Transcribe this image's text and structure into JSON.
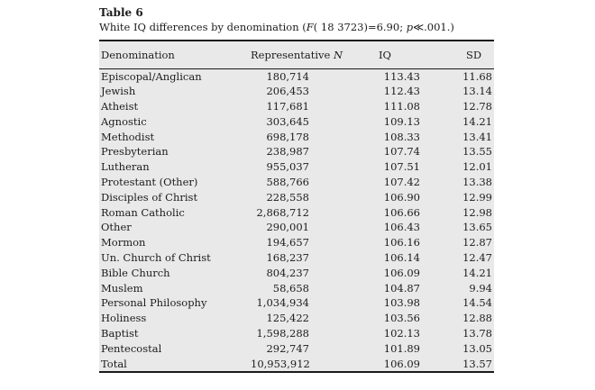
{
  "page": {
    "title": "Table 6",
    "caption": {
      "prefix": "White IQ differences by denomination (",
      "f_symbol": "F",
      "f_args": "( 18 3723)=6.90; ",
      "p_symbol": "p",
      "p_value": "≪.001.)"
    }
  },
  "colors": {
    "page_background": "#ffffff",
    "table_background": "#e9e9e9",
    "rule": "#1a1a1a",
    "text": "#1c1c1c"
  },
  "table": {
    "columns": [
      {
        "label": "Denomination"
      },
      {
        "label": "Representative",
        "label_italic_suffix": "N"
      },
      {
        "label": "IQ"
      },
      {
        "label": "SD"
      }
    ],
    "rows": [
      {
        "denomination": "Episcopal/Anglican",
        "representative_n": "180,714",
        "iq": "113.43",
        "sd": "11.68"
      },
      {
        "denomination": "Jewish",
        "representative_n": "206,453",
        "iq": "112.43",
        "sd": "13.14"
      },
      {
        "denomination": "Atheist",
        "representative_n": "117,681",
        "iq": "111.08",
        "sd": "12.78"
      },
      {
        "denomination": "Agnostic",
        "representative_n": "303,645",
        "iq": "109.13",
        "sd": "14.21"
      },
      {
        "denomination": "Methodist",
        "representative_n": "698,178",
        "iq": "108.33",
        "sd": "13.41"
      },
      {
        "denomination": "Presbyterian",
        "representative_n": "238,987",
        "iq": "107.74",
        "sd": "13.55"
      },
      {
        "denomination": "Lutheran",
        "representative_n": "955,037",
        "iq": "107.51",
        "sd": "12.01"
      },
      {
        "denomination": "Protestant (Other)",
        "representative_n": "588,766",
        "iq": "107.42",
        "sd": "13.38"
      },
      {
        "denomination": "Disciples of Christ",
        "representative_n": "228,558",
        "iq": "106.90",
        "sd": "12.99"
      },
      {
        "denomination": "Roman Catholic",
        "representative_n": "2,868,712",
        "iq": "106.66",
        "sd": "12.98"
      },
      {
        "denomination": "Other",
        "representative_n": "290,001",
        "iq": "106.43",
        "sd": "13.65"
      },
      {
        "denomination": "Mormon",
        "representative_n": "194,657",
        "iq": "106.16",
        "sd": "12.87"
      },
      {
        "denomination": "Un. Church of Christ",
        "representative_n": "168,237",
        "iq": "106.14",
        "sd": "12.47"
      },
      {
        "denomination": "Bible Church",
        "representative_n": "804,237",
        "iq": "106.09",
        "sd": "14.21"
      },
      {
        "denomination": "Muslem",
        "representative_n": "58,658",
        "iq": "104.87",
        "sd": "9.94"
      },
      {
        "denomination": "Personal Philosophy",
        "representative_n": "1,034,934",
        "iq": "103.98",
        "sd": "14.54"
      },
      {
        "denomination": "Holiness",
        "representative_n": "125,422",
        "iq": "103.56",
        "sd": "12.88"
      },
      {
        "denomination": "Baptist",
        "representative_n": "1,598,288",
        "iq": "102.13",
        "sd": "13.78"
      },
      {
        "denomination": "Pentecostal",
        "representative_n": "292,747",
        "iq": "101.89",
        "sd": "13.05"
      },
      {
        "denomination": "Total",
        "representative_n": "10,953,912",
        "iq": "106.09",
        "sd": "13.57"
      }
    ]
  }
}
